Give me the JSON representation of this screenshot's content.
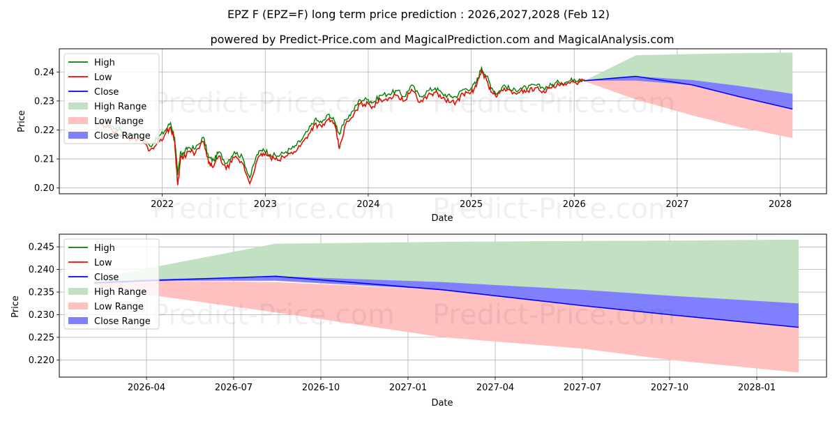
{
  "header": {
    "title": "EPZ F (EPZ=F) long term price prediction : 2026,2027,2028 (Feb 12)",
    "subtitle": "powered by Predict-Price.com and MagicalPrediction.com and MagicalAnalysis.com"
  },
  "watermark": "Predict-Price.com",
  "colors": {
    "high": "#008000",
    "low": "#ff0000",
    "history_line": "#dd1100",
    "close": "#0000ff",
    "high_range": "#c2e0c2",
    "low_range": "#ffc0c0",
    "close_range": "#8080ff",
    "grid": "#b0b0b0"
  },
  "legend": [
    "High",
    "Low",
    "Close",
    "High Range",
    "Low Range",
    "Close Range"
  ],
  "chart_data": [
    {
      "type": "line",
      "name": "long-term",
      "xlabel": "Date",
      "ylabel": "Price",
      "xlim": [
        2021.0,
        2028.45
      ],
      "ylim": [
        0.198,
        0.248
      ],
      "x_ticks": [
        2022,
        2023,
        2024,
        2025,
        2026,
        2027,
        2028
      ],
      "x_tick_labels": [
        "2022",
        "2023",
        "2024",
        "2025",
        "2026",
        "2027",
        "2028"
      ],
      "y_ticks": [
        0.2,
        0.21,
        0.22,
        0.23,
        0.24
      ],
      "y_tick_labels": [
        "0.20",
        "0.21",
        "0.22",
        "0.23",
        "0.24"
      ],
      "history": {
        "x": [
          2021.35,
          2021.45,
          2021.55,
          2021.65,
          2021.72,
          2021.8,
          2021.88,
          2021.95,
          2022.02,
          2022.08,
          2022.12,
          2022.15,
          2022.18,
          2022.2,
          2022.25,
          2022.32,
          2022.4,
          2022.45,
          2022.5,
          2022.55,
          2022.62,
          2022.7,
          2022.78,
          2022.85,
          2022.92,
          2022.98,
          2023.05,
          2023.12,
          2023.2,
          2023.28,
          2023.35,
          2023.42,
          2023.48,
          2023.55,
          2023.62,
          2023.68,
          2023.72,
          2023.78,
          2023.85,
          2023.92,
          2024.0,
          2024.05,
          2024.12,
          2024.2,
          2024.28,
          2024.35,
          2024.42,
          2024.5,
          2024.58,
          2024.65,
          2024.72,
          2024.8,
          2024.85,
          2024.92,
          2025.0,
          2025.05,
          2025.1,
          2025.15,
          2025.2,
          2025.25,
          2025.32,
          2025.4,
          2025.48,
          2025.55,
          2025.62,
          2025.7,
          2025.78,
          2025.85,
          2025.92,
          2026.0,
          2026.05,
          2026.1
        ],
        "high": [
          0.2235,
          0.2225,
          0.2205,
          0.219,
          0.2185,
          0.2175,
          0.2145,
          0.217,
          0.2195,
          0.2225,
          0.2175,
          0.2045,
          0.2125,
          0.2115,
          0.214,
          0.2135,
          0.2175,
          0.2105,
          0.2095,
          0.2125,
          0.2085,
          0.2125,
          0.2105,
          0.2035,
          0.2115,
          0.2135,
          0.2115,
          0.211,
          0.2125,
          0.214,
          0.2165,
          0.22,
          0.2235,
          0.2225,
          0.2255,
          0.2225,
          0.2185,
          0.2235,
          0.2265,
          0.2305,
          0.2305,
          0.2295,
          0.232,
          0.2325,
          0.2335,
          0.2315,
          0.2355,
          0.2315,
          0.2335,
          0.2345,
          0.2325,
          0.2315,
          0.2315,
          0.234,
          0.2345,
          0.2365,
          0.2415,
          0.2385,
          0.2345,
          0.2325,
          0.2355,
          0.2335,
          0.2345,
          0.2345,
          0.2355,
          0.2345,
          0.2355,
          0.2365,
          0.2365,
          0.2375,
          0.2375,
          0.2375
        ],
        "low": [
          0.2225,
          0.221,
          0.2195,
          0.2175,
          0.217,
          0.2165,
          0.213,
          0.2155,
          0.218,
          0.221,
          0.216,
          0.201,
          0.211,
          0.21,
          0.2125,
          0.212,
          0.216,
          0.2085,
          0.2075,
          0.211,
          0.2065,
          0.2105,
          0.2085,
          0.2015,
          0.2095,
          0.212,
          0.2105,
          0.2095,
          0.211,
          0.2125,
          0.215,
          0.2185,
          0.222,
          0.221,
          0.224,
          0.221,
          0.2135,
          0.222,
          0.2245,
          0.229,
          0.229,
          0.228,
          0.2305,
          0.231,
          0.232,
          0.23,
          0.234,
          0.2295,
          0.232,
          0.233,
          0.231,
          0.2295,
          0.2295,
          0.2325,
          0.233,
          0.235,
          0.2405,
          0.237,
          0.233,
          0.2315,
          0.2345,
          0.2325,
          0.2335,
          0.2335,
          0.2345,
          0.2335,
          0.2345,
          0.2355,
          0.2355,
          0.2365,
          0.2365,
          0.2368
        ]
      },
      "forecast": {
        "x": [
          2026.1,
          2026.6,
          2027.15,
          2027.6,
          2028.12
        ],
        "close": [
          0.237,
          0.2385,
          0.2355,
          0.2315,
          0.2272
        ],
        "high_range": [
          [
            0.237,
            0.237
          ],
          [
            0.237,
            0.2458
          ],
          [
            0.2355,
            0.2462
          ],
          [
            0.2315,
            0.2465
          ],
          [
            0.2272,
            0.2467
          ]
        ],
        "low_range": [
          [
            0.2368,
            0.237
          ],
          [
            0.2305,
            0.237
          ],
          [
            0.225,
            0.2355
          ],
          [
            0.221,
            0.2315
          ],
          [
            0.2172,
            0.2272
          ]
        ],
        "close_range": [
          [
            0.237,
            0.237
          ],
          [
            0.237,
            0.2385
          ],
          [
            0.2355,
            0.2372
          ],
          [
            0.2315,
            0.2352
          ],
          [
            0.2272,
            0.2325
          ]
        ]
      }
    },
    {
      "type": "line",
      "name": "forecast-zoom",
      "xlabel": "Date",
      "ylabel": "Price",
      "xlim": [
        2026.0,
        2028.2
      ],
      "ylim": [
        0.2162,
        0.2478
      ],
      "x_ticks": [
        2026.25,
        2026.5,
        2026.75,
        2027.0,
        2027.25,
        2027.5,
        2027.75,
        2028.0
      ],
      "x_tick_labels": [
        "2026-04",
        "2026-07",
        "2026-10",
        "2027-01",
        "2027-04",
        "2027-07",
        "2027-10",
        "2028-01"
      ],
      "y_ticks": [
        0.22,
        0.225,
        0.23,
        0.235,
        0.24,
        0.245
      ],
      "y_tick_labels": [
        "0.220",
        "0.225",
        "0.230",
        "0.235",
        "0.240",
        "0.245"
      ],
      "forecast": {
        "x": [
          2026.1,
          2026.25,
          2026.62,
          2027.1,
          2027.5,
          2027.75,
          2028.12
        ],
        "close": [
          0.237,
          0.2375,
          0.2385,
          0.2355,
          0.232,
          0.23,
          0.2272
        ],
        "high_range": [
          [
            0.237,
            0.238
          ],
          [
            0.2375,
            0.2402
          ],
          [
            0.2385,
            0.2457
          ],
          [
            0.2355,
            0.2461
          ],
          [
            0.232,
            0.2463
          ],
          [
            0.23,
            0.2464
          ],
          [
            0.2272,
            0.2466
          ]
        ],
        "low_range": [
          [
            0.2365,
            0.237
          ],
          [
            0.2345,
            0.2375
          ],
          [
            0.2305,
            0.2372
          ],
          [
            0.225,
            0.2355
          ],
          [
            0.2225,
            0.232
          ],
          [
            0.22,
            0.23
          ],
          [
            0.2172,
            0.2272
          ]
        ],
        "close_range": [
          [
            0.237,
            0.2372
          ],
          [
            0.2375,
            0.2378
          ],
          [
            0.2375,
            0.2385
          ],
          [
            0.2355,
            0.2372
          ],
          [
            0.232,
            0.2355
          ],
          [
            0.23,
            0.2342
          ],
          [
            0.2272,
            0.2325
          ]
        ]
      }
    }
  ]
}
